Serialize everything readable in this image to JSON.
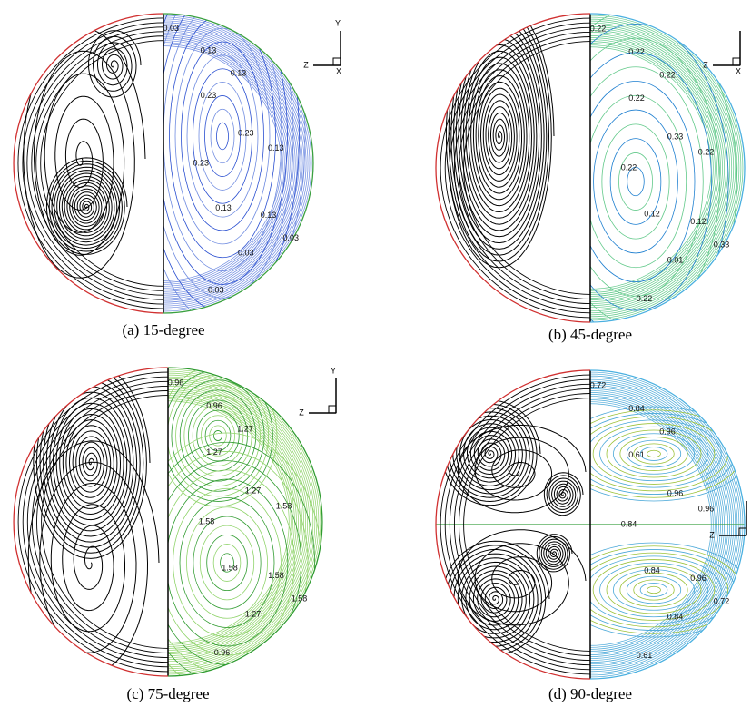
{
  "panels": [
    {
      "caption": "(a) 15-degree",
      "axis_labels": [
        "Y",
        "Z",
        "X"
      ],
      "contour_labels": [
        "0.03",
        "0.13",
        "0.13",
        "0.23",
        "0.23",
        "0.23",
        "0.13",
        "0.13",
        "0.13",
        "0.03",
        "0.03",
        "0.03"
      ]
    },
    {
      "caption": "(b) 45-degree",
      "axis_labels": [
        "Z",
        "X"
      ],
      "contour_labels": [
        "0.22",
        "0.22",
        "0.22",
        "0.22",
        "0.33",
        "0.22",
        "0.22",
        "0.12",
        "0.12",
        "0.01",
        "0.22",
        "0.33"
      ]
    },
    {
      "caption": "(c) 75-degree",
      "axis_labels": [
        "Y",
        "Z"
      ],
      "contour_labels": [
        "0.96",
        "0.96",
        "1.27",
        "1.27",
        "1.27",
        "1.58",
        "1.58",
        "1.58",
        "1.58",
        "1.27",
        "0.96",
        "1.58"
      ]
    },
    {
      "caption": "(d) 90-degree",
      "axis_labels": [
        "Z"
      ],
      "contour_labels": [
        "0.72",
        "0.84",
        "0.96",
        "0.61",
        "0.96",
        "0.84",
        "0.96",
        "0.84",
        "0.96",
        "0.84",
        "0.61",
        "0.72"
      ]
    }
  ]
}
